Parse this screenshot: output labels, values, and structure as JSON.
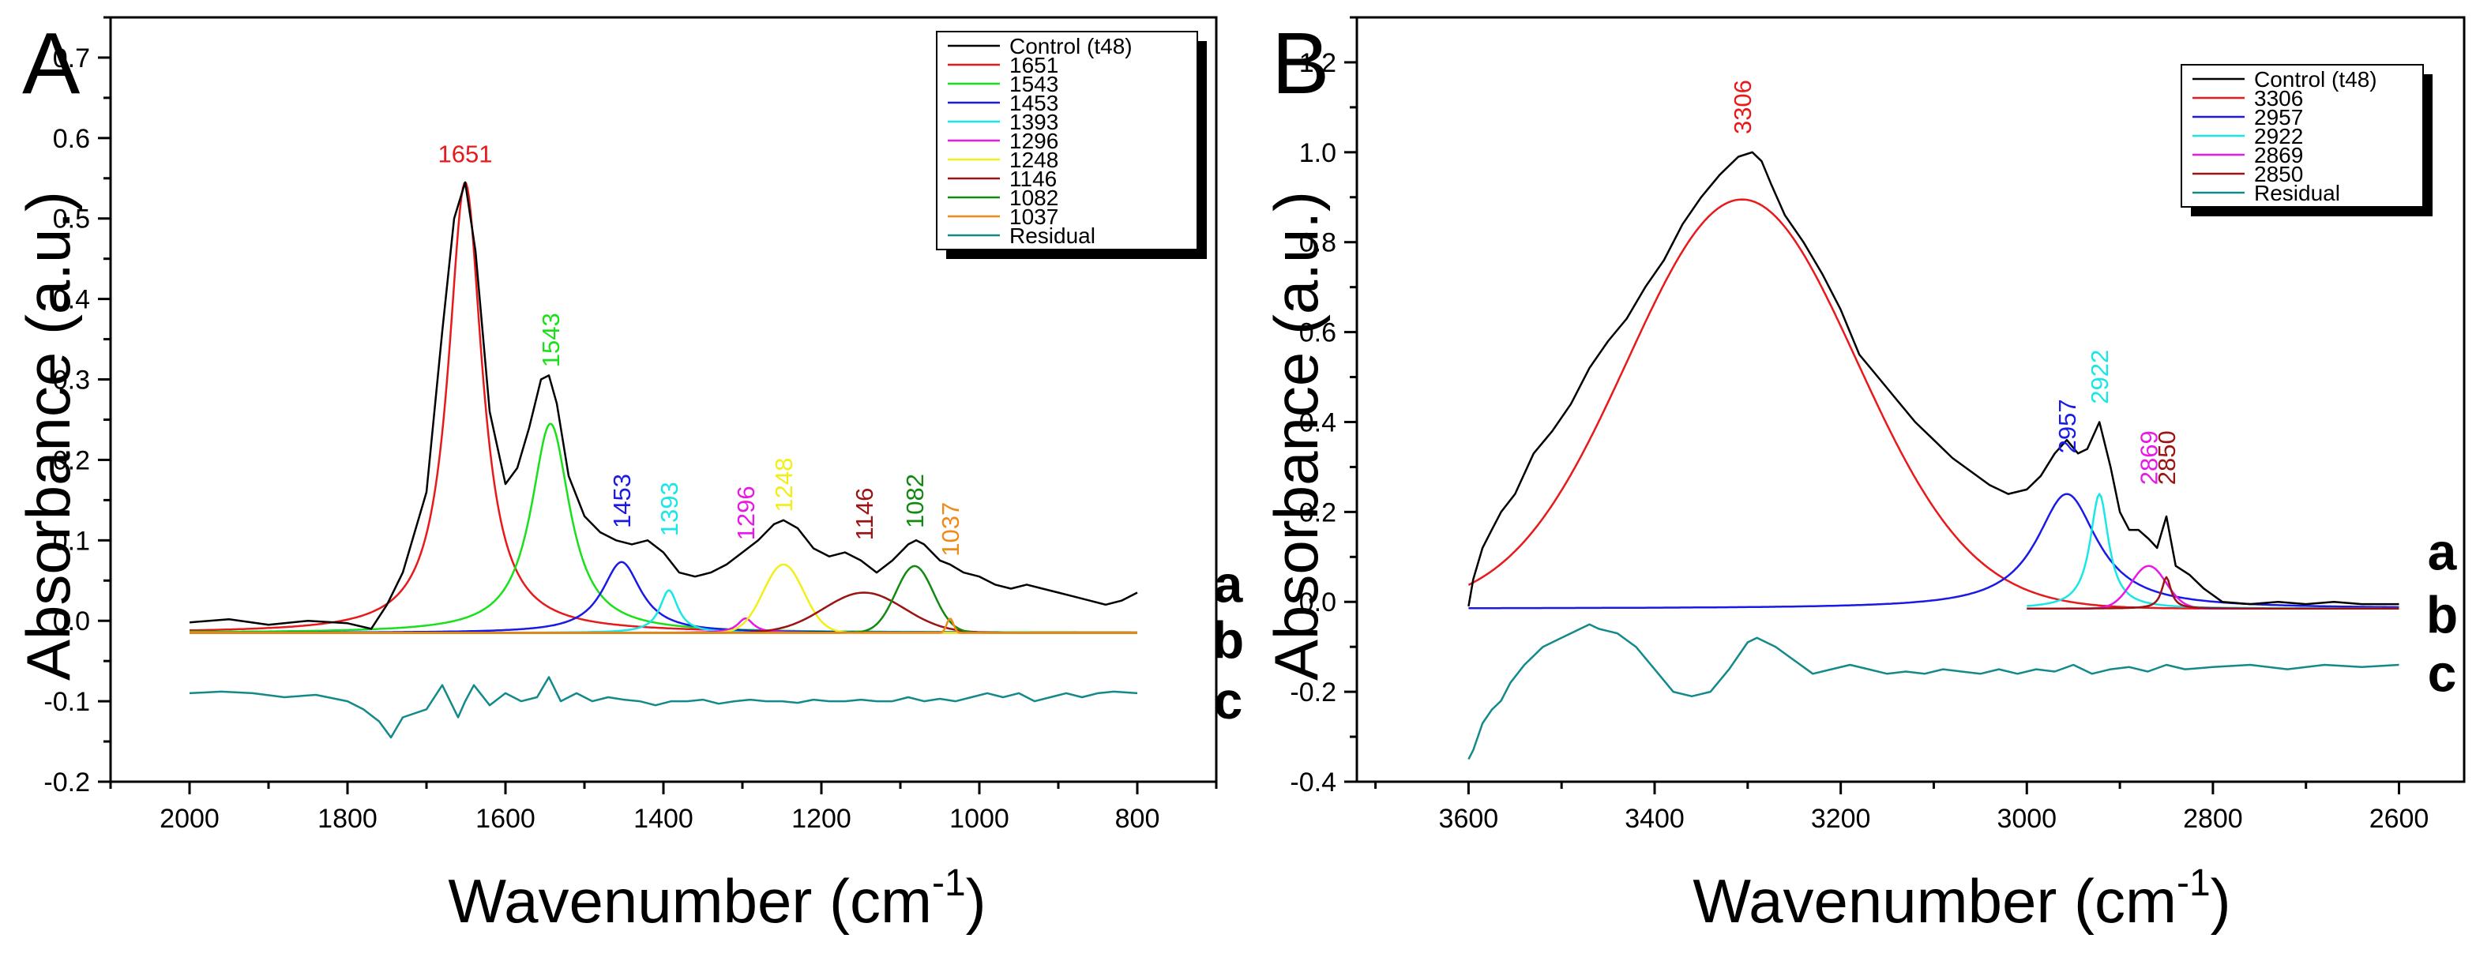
{
  "figure": {
    "panel_letters": [
      "A",
      "B"
    ]
  },
  "chart_data": [
    {
      "type": "line",
      "panel": "A",
      "xlabel": "Wavenumber (cm-1)",
      "xlabel_main": "Wavenumber (cm",
      "xlabel_sup": "-1",
      "xlabel_end": ")",
      "ylabel": "Absorbance (a.u.)",
      "xlim": [
        2100,
        700
      ],
      "ylim": [
        -0.2,
        0.75
      ],
      "xticks": [
        2000,
        1800,
        1600,
        1400,
        1200,
        1000,
        800
      ],
      "yticks": [
        -0.2,
        -0.1,
        0.0,
        0.1,
        0.2,
        0.3,
        0.4,
        0.5,
        0.6,
        0.7
      ],
      "ytick_labels": [
        "-0.2",
        "-0.1",
        "0.0",
        "0.1",
        "0.2",
        "0.3",
        "0.4",
        "0.5",
        "0.6",
        "0.7"
      ],
      "grid": false,
      "legend_position": "top-right",
      "x_range": [
        2000,
        800
      ],
      "baseline": -0.015,
      "control_series": {
        "name": "Control (t48)",
        "color": "#000000",
        "x": [
          2000,
          1950,
          1900,
          1850,
          1800,
          1770,
          1750,
          1730,
          1700,
          1680,
          1665,
          1651,
          1638,
          1620,
          1600,
          1585,
          1570,
          1555,
          1545,
          1535,
          1520,
          1500,
          1480,
          1460,
          1440,
          1420,
          1400,
          1380,
          1360,
          1340,
          1320,
          1300,
          1280,
          1260,
          1248,
          1230,
          1210,
          1190,
          1170,
          1150,
          1130,
          1110,
          1090,
          1080,
          1070,
          1050,
          1037,
          1020,
          1000,
          980,
          960,
          940,
          920,
          900,
          880,
          860,
          840,
          820,
          800
        ],
        "y": [
          -0.002,
          0.002,
          -0.005,
          0.0,
          -0.003,
          -0.01,
          0.02,
          0.06,
          0.16,
          0.36,
          0.5,
          0.545,
          0.46,
          0.26,
          0.17,
          0.19,
          0.24,
          0.3,
          0.305,
          0.27,
          0.18,
          0.13,
          0.11,
          0.1,
          0.095,
          0.1,
          0.085,
          0.06,
          0.055,
          0.06,
          0.07,
          0.085,
          0.1,
          0.12,
          0.125,
          0.115,
          0.09,
          0.08,
          0.085,
          0.075,
          0.06,
          0.075,
          0.095,
          0.1,
          0.095,
          0.075,
          0.07,
          0.06,
          0.055,
          0.045,
          0.04,
          0.045,
          0.04,
          0.035,
          0.03,
          0.025,
          0.02,
          0.025,
          0.035
        ]
      },
      "components": [
        {
          "name": "1651",
          "color": "#e8191b",
          "center": 1651,
          "amp": 0.56,
          "hwhm": 26,
          "shape": "lorentz",
          "start": 2000,
          "end": 800
        },
        {
          "name": "1543",
          "color": "#19e019",
          "center": 1543,
          "amp": 0.26,
          "hwhm": 30,
          "shape": "lorentz",
          "start": 2000,
          "end": 800
        },
        {
          "name": "1453",
          "color": "#1a1ae6",
          "center": 1453,
          "amp": 0.088,
          "hwhm": 30,
          "shape": "lorentz",
          "start": 2000,
          "end": 800
        },
        {
          "name": "1393",
          "color": "#19e6e6",
          "center": 1393,
          "amp": 0.053,
          "hwhm": 14,
          "shape": "lorentz",
          "start": 2000,
          "end": 800
        },
        {
          "name": "1296",
          "color": "#e619e6",
          "center": 1296,
          "amp": 0.018,
          "hwhm": 12,
          "shape": "lorentz",
          "start": 2000,
          "end": 800
        },
        {
          "name": "1248",
          "color": "#f0f019",
          "center": 1248,
          "amp": 0.085,
          "hwhm": 30,
          "shape": "gauss",
          "start": 2000,
          "end": 800
        },
        {
          "name": "1146",
          "color": "#9a1414",
          "center": 1146,
          "amp": 0.05,
          "hwhm": 60,
          "shape": "gauss",
          "start": 2000,
          "end": 800
        },
        {
          "name": "1082",
          "color": "#128a12",
          "center": 1082,
          "amp": 0.083,
          "hwhm": 28,
          "shape": "gauss",
          "start": 2000,
          "end": 800
        },
        {
          "name": "1037",
          "color": "#f08a19",
          "center": 1037,
          "amp": 0.018,
          "hwhm": 5,
          "shape": "gauss",
          "start": 2000,
          "end": 800
        }
      ],
      "residual_series": {
        "name": "Residual",
        "color": "#138a8a",
        "x": [
          2000,
          1960,
          1920,
          1880,
          1840,
          1800,
          1780,
          1760,
          1745,
          1730,
          1700,
          1680,
          1660,
          1651,
          1640,
          1620,
          1600,
          1580,
          1560,
          1545,
          1530,
          1510,
          1490,
          1470,
          1450,
          1430,
          1410,
          1390,
          1370,
          1350,
          1330,
          1310,
          1290,
          1270,
          1250,
          1230,
          1210,
          1190,
          1170,
          1150,
          1130,
          1110,
          1090,
          1070,
          1050,
          1030,
          1010,
          990,
          970,
          950,
          930,
          910,
          890,
          870,
          850,
          830,
          800
        ],
        "y": [
          -0.09,
          -0.088,
          -0.09,
          -0.095,
          -0.092,
          -0.1,
          -0.11,
          -0.125,
          -0.145,
          -0.12,
          -0.11,
          -0.08,
          -0.12,
          -0.1,
          -0.08,
          -0.105,
          -0.09,
          -0.1,
          -0.095,
          -0.07,
          -0.1,
          -0.09,
          -0.1,
          -0.095,
          -0.098,
          -0.1,
          -0.105,
          -0.1,
          -0.1,
          -0.098,
          -0.103,
          -0.1,
          -0.098,
          -0.1,
          -0.1,
          -0.102,
          -0.098,
          -0.1,
          -0.1,
          -0.098,
          -0.1,
          -0.1,
          -0.095,
          -0.1,
          -0.097,
          -0.1,
          -0.095,
          -0.09,
          -0.095,
          -0.09,
          -0.1,
          -0.095,
          -0.09,
          -0.095,
          -0.09,
          -0.088,
          -0.09
        ]
      },
      "legend": [
        "Control (t48)",
        "1651",
        "1543",
        "1453",
        "1393",
        "1296",
        "1248",
        "1146",
        "1082",
        "1037",
        "Residual"
      ],
      "legend_colors": [
        "#000000",
        "#e8191b",
        "#19e019",
        "#1a1ae6",
        "#19e6e6",
        "#e619e6",
        "#f0f019",
        "#9a1414",
        "#128a12",
        "#f08a19",
        "#138a8a"
      ],
      "peak_labels": [
        {
          "text": "1651",
          "x": 1651,
          "y": 0.56,
          "color": "#e8191b",
          "rotate": false
        },
        {
          "text": "1543",
          "x": 1543,
          "y": 0.315,
          "color": "#19e019",
          "rotate": true
        },
        {
          "text": "1453",
          "x": 1453,
          "y": 0.115,
          "color": "#1a1ae6",
          "rotate": true
        },
        {
          "text": "1393",
          "x": 1393,
          "y": 0.105,
          "color": "#19e6e6",
          "rotate": true
        },
        {
          "text": "1296",
          "x": 1296,
          "y": 0.1,
          "color": "#e619e6",
          "rotate": true
        },
        {
          "text": "1248",
          "x": 1248,
          "y": 0.135,
          "color": "#f0f019",
          "rotate": true
        },
        {
          "text": "1146",
          "x": 1146,
          "y": 0.1,
          "color": "#9a1414",
          "rotate": true
        },
        {
          "text": "1082",
          "x": 1082,
          "y": 0.115,
          "color": "#128a12",
          "rotate": true
        },
        {
          "text": "1037",
          "x": 1037,
          "y": 0.08,
          "color": "#f08a19",
          "rotate": true
        }
      ],
      "curve_labels": [
        {
          "text": "a",
          "y": 0.045
        },
        {
          "text": "b",
          "y": -0.025
        },
        {
          "text": "c",
          "y": -0.1
        }
      ]
    },
    {
      "type": "line",
      "panel": "B",
      "xlabel": "Wavenumber (cm-1)",
      "xlabel_main": "Wavenumber (cm",
      "xlabel_sup": "-1",
      "xlabel_end": ")",
      "ylabel": "Absorbance (a.u.)",
      "xlim": [
        3720,
        2530
      ],
      "ylim": [
        -0.4,
        1.3
      ],
      "xticks": [
        3600,
        3400,
        3200,
        3000,
        2800,
        2600
      ],
      "yticks": [
        -0.4,
        -0.2,
        0.0,
        0.2,
        0.4,
        0.6,
        0.8,
        1.0,
        1.2
      ],
      "ytick_labels": [
        "-0.4",
        "-0.2",
        "0.0",
        "0.2",
        "0.4",
        "0.6",
        "0.8",
        "1.0",
        "1.2"
      ],
      "grid": false,
      "legend_position": "top-right",
      "x_range": [
        3600,
        2600
      ],
      "baseline": -0.015,
      "control_series": {
        "name": "Control (t48)",
        "color": "#000000",
        "x": [
          3600,
          3595,
          3585,
          3575,
          3565,
          3550,
          3530,
          3510,
          3490,
          3470,
          3450,
          3430,
          3410,
          3390,
          3370,
          3350,
          3330,
          3310,
          3295,
          3285,
          3275,
          3260,
          3240,
          3220,
          3200,
          3180,
          3160,
          3140,
          3120,
          3100,
          3080,
          3060,
          3040,
          3020,
          3000,
          2985,
          2970,
          2957,
          2945,
          2935,
          2922,
          2910,
          2900,
          2890,
          2880,
          2869,
          2860,
          2850,
          2840,
          2825,
          2810,
          2790,
          2760,
          2730,
          2700,
          2670,
          2640,
          2600
        ],
        "y": [
          -0.01,
          0.05,
          0.12,
          0.16,
          0.2,
          0.24,
          0.33,
          0.38,
          0.44,
          0.52,
          0.58,
          0.63,
          0.7,
          0.76,
          0.84,
          0.9,
          0.95,
          0.99,
          1.0,
          0.98,
          0.93,
          0.86,
          0.8,
          0.73,
          0.65,
          0.55,
          0.5,
          0.45,
          0.4,
          0.36,
          0.32,
          0.29,
          0.26,
          0.24,
          0.25,
          0.28,
          0.33,
          0.36,
          0.33,
          0.34,
          0.4,
          0.3,
          0.2,
          0.16,
          0.16,
          0.14,
          0.12,
          0.19,
          0.08,
          0.06,
          0.03,
          0.0,
          -0.005,
          0.0,
          -0.005,
          0.0,
          -0.005,
          -0.005
        ]
      },
      "components": [
        {
          "name": "3306",
          "color": "#e8191b",
          "center": 3306,
          "amp": 0.91,
          "hwhm": 145,
          "shape": "gauss",
          "start": 3600,
          "end": 2600
        },
        {
          "name": "2957",
          "color": "#1a1ae6",
          "center": 2957,
          "amp": 0.255,
          "hwhm": 40,
          "shape": "lorentz",
          "start": 3600,
          "end": 2600
        },
        {
          "name": "2922",
          "color": "#19e6e6",
          "center": 2922,
          "amp": 0.255,
          "hwhm": 12,
          "shape": "lorentz",
          "start": 3000,
          "end": 2600
        },
        {
          "name": "2869",
          "color": "#e619e6",
          "center": 2869,
          "amp": 0.095,
          "hwhm": 22,
          "shape": "gauss",
          "start": 3000,
          "end": 2600
        },
        {
          "name": "2850",
          "color": "#9a1414",
          "center": 2850,
          "amp": 0.07,
          "hwhm": 6,
          "shape": "lorentz",
          "start": 3000,
          "end": 2600
        }
      ],
      "residual_series": {
        "name": "Residual",
        "color": "#138a8a",
        "x": [
          3600,
          3595,
          3585,
          3575,
          3565,
          3555,
          3540,
          3520,
          3500,
          3480,
          3470,
          3460,
          3440,
          3420,
          3400,
          3380,
          3360,
          3340,
          3320,
          3300,
          3290,
          3280,
          3270,
          3250,
          3230,
          3210,
          3190,
          3170,
          3150,
          3130,
          3110,
          3090,
          3070,
          3050,
          3030,
          3010,
          2990,
          2970,
          2950,
          2930,
          2910,
          2890,
          2870,
          2850,
          2830,
          2800,
          2760,
          2720,
          2680,
          2640,
          2600
        ],
        "y": [
          -0.35,
          -0.33,
          -0.27,
          -0.24,
          -0.22,
          -0.18,
          -0.14,
          -0.1,
          -0.08,
          -0.06,
          -0.05,
          -0.06,
          -0.07,
          -0.1,
          -0.15,
          -0.2,
          -0.21,
          -0.2,
          -0.15,
          -0.09,
          -0.08,
          -0.09,
          -0.1,
          -0.13,
          -0.16,
          -0.15,
          -0.14,
          -0.15,
          -0.16,
          -0.155,
          -0.16,
          -0.15,
          -0.155,
          -0.16,
          -0.15,
          -0.16,
          -0.15,
          -0.155,
          -0.14,
          -0.16,
          -0.15,
          -0.145,
          -0.155,
          -0.14,
          -0.15,
          -0.145,
          -0.14,
          -0.15,
          -0.14,
          -0.145,
          -0.14
        ]
      },
      "legend": [
        "Control (t48)",
        "3306",
        "2957",
        "2922",
        "2869",
        "2850",
        "Residual"
      ],
      "legend_colors": [
        "#000000",
        "#e8191b",
        "#1a1ae6",
        "#19e6e6",
        "#e619e6",
        "#9a1414",
        "#138a8a"
      ],
      "peak_labels": [
        {
          "text": "3306",
          "x": 3306,
          "y": 1.04,
          "color": "#e8191b",
          "rotate": true
        },
        {
          "text": "2957",
          "x": 2957,
          "y": 0.33,
          "color": "#1a1ae6",
          "rotate": true
        },
        {
          "text": "2922",
          "x": 2922,
          "y": 0.44,
          "color": "#19e6e6",
          "rotate": true
        },
        {
          "text": "2869",
          "x": 2869,
          "y": 0.26,
          "color": "#e619e6",
          "rotate": true
        },
        {
          "text": "2850",
          "x": 2850,
          "y": 0.26,
          "color": "#9a1414",
          "rotate": true
        }
      ],
      "curve_labels": [
        {
          "text": "a",
          "y": 0.11
        },
        {
          "text": "b",
          "y": -0.03
        },
        {
          "text": "c",
          "y": -0.16
        }
      ]
    }
  ]
}
